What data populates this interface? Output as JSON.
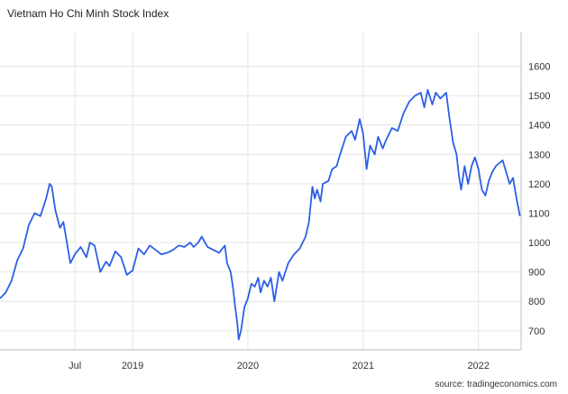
{
  "title": "Vietnam Ho Chi Minh Stock Index",
  "source": "source: tradingeconomics.com",
  "chart_data": {
    "type": "line",
    "title": "Vietnam Ho Chi Minh Stock Index",
    "xlabel": "",
    "ylabel": "",
    "ylim": [
      635,
      1715
    ],
    "y_ticks": [
      700,
      800,
      900,
      1000,
      1100,
      1200,
      1300,
      1400,
      1500,
      1600
    ],
    "x_ticks": [
      {
        "label": "Jul",
        "t": 2018.5
      },
      {
        "label": "2019",
        "t": 2019.0
      },
      {
        "label": "2020",
        "t": 2020.0
      },
      {
        "label": "2021",
        "t": 2021.0
      },
      {
        "label": "2022",
        "t": 2022.0
      }
    ],
    "x_range": [
      2017.85,
      2022.37
    ],
    "grid": true,
    "y_axis_side": "right",
    "line_color": "#2c5fe6",
    "series": [
      {
        "name": "",
        "points": [
          [
            2017.85,
            810
          ],
          [
            2017.9,
            830
          ],
          [
            2017.95,
            870
          ],
          [
            2018.0,
            940
          ],
          [
            2018.05,
            980
          ],
          [
            2018.1,
            1060
          ],
          [
            2018.15,
            1100
          ],
          [
            2018.2,
            1090
          ],
          [
            2018.25,
            1150
          ],
          [
            2018.28,
            1200
          ],
          [
            2018.3,
            1190
          ],
          [
            2018.33,
            1110
          ],
          [
            2018.37,
            1050
          ],
          [
            2018.4,
            1070
          ],
          [
            2018.43,
            1000
          ],
          [
            2018.46,
            930
          ],
          [
            2018.5,
            960
          ],
          [
            2018.55,
            985
          ],
          [
            2018.6,
            950
          ],
          [
            2018.63,
            1000
          ],
          [
            2018.67,
            990
          ],
          [
            2018.72,
            900
          ],
          [
            2018.77,
            935
          ],
          [
            2018.8,
            920
          ],
          [
            2018.85,
            970
          ],
          [
            2018.9,
            950
          ],
          [
            2018.95,
            890
          ],
          [
            2019.0,
            905
          ],
          [
            2019.05,
            980
          ],
          [
            2019.1,
            960
          ],
          [
            2019.15,
            990
          ],
          [
            2019.2,
            975
          ],
          [
            2019.25,
            960
          ],
          [
            2019.3,
            965
          ],
          [
            2019.35,
            975
          ],
          [
            2019.4,
            990
          ],
          [
            2019.45,
            985
          ],
          [
            2019.5,
            1000
          ],
          [
            2019.53,
            985
          ],
          [
            2019.57,
            1000
          ],
          [
            2019.6,
            1020
          ],
          [
            2019.65,
            985
          ],
          [
            2019.7,
            975
          ],
          [
            2019.75,
            965
          ],
          [
            2019.8,
            990
          ],
          [
            2019.82,
            930
          ],
          [
            2019.85,
            900
          ],
          [
            2019.87,
            850
          ],
          [
            2019.89,
            780
          ],
          [
            2019.91,
            720
          ],
          [
            2019.92,
            670
          ],
          [
            2019.94,
            700
          ],
          [
            2019.97,
            780
          ],
          [
            2020.0,
            810
          ],
          [
            2020.03,
            860
          ],
          [
            2020.06,
            850
          ],
          [
            2020.09,
            880
          ],
          [
            2020.11,
            830
          ],
          [
            2020.14,
            870
          ],
          [
            2020.17,
            850
          ],
          [
            2020.2,
            880
          ],
          [
            2020.23,
            800
          ],
          [
            2020.27,
            900
          ],
          [
            2020.3,
            870
          ],
          [
            2020.35,
            930
          ],
          [
            2020.4,
            960
          ],
          [
            2020.45,
            980
          ],
          [
            2020.5,
            1020
          ],
          [
            2020.53,
            1070
          ],
          [
            2020.56,
            1190
          ],
          [
            2020.58,
            1150
          ],
          [
            2020.6,
            1180
          ],
          [
            2020.63,
            1140
          ],
          [
            2020.65,
            1200
          ],
          [
            2020.7,
            1210
          ],
          [
            2020.73,
            1250
          ],
          [
            2020.77,
            1260
          ],
          [
            2020.8,
            1300
          ],
          [
            2020.85,
            1360
          ],
          [
            2020.9,
            1380
          ],
          [
            2020.93,
            1350
          ],
          [
            2020.97,
            1420
          ],
          [
            2021.0,
            1370
          ],
          [
            2021.03,
            1250
          ],
          [
            2021.06,
            1330
          ],
          [
            2021.1,
            1300
          ],
          [
            2021.13,
            1360
          ],
          [
            2021.17,
            1320
          ],
          [
            2021.2,
            1350
          ],
          [
            2021.25,
            1390
          ],
          [
            2021.3,
            1380
          ],
          [
            2021.35,
            1440
          ],
          [
            2021.4,
            1480
          ],
          [
            2021.45,
            1500
          ],
          [
            2021.5,
            1510
          ],
          [
            2021.53,
            1460
          ],
          [
            2021.56,
            1520
          ],
          [
            2021.6,
            1470
          ],
          [
            2021.63,
            1510
          ],
          [
            2021.67,
            1490
          ],
          [
            2021.72,
            1510
          ],
          [
            2021.75,
            1420
          ],
          [
            2021.78,
            1340
          ],
          [
            2021.81,
            1300
          ],
          [
            2021.83,
            1230
          ],
          [
            2021.85,
            1180
          ],
          [
            2021.88,
            1260
          ],
          [
            2021.91,
            1200
          ],
          [
            2021.94,
            1260
          ],
          [
            2021.97,
            1290
          ],
          [
            2022.0,
            1250
          ],
          [
            2022.03,
            1180
          ],
          [
            2022.06,
            1160
          ],
          [
            2022.09,
            1210
          ],
          [
            2022.12,
            1240
          ],
          [
            2022.15,
            1260
          ],
          [
            2022.18,
            1270
          ],
          [
            2022.21,
            1280
          ],
          [
            2022.24,
            1240
          ],
          [
            2022.27,
            1200
          ],
          [
            2022.3,
            1220
          ],
          [
            2022.33,
            1150
          ],
          [
            2022.36,
            1090
          ]
        ]
      }
    ]
  }
}
